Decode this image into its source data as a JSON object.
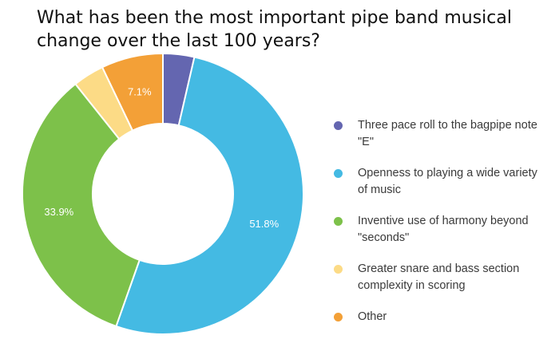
{
  "chart_data": {
    "type": "pie",
    "title": "What has been the most important pipe band musical change over the last 100 years?",
    "categories": [
      "Three pace roll to the bagpipe note \"E\"",
      "Openness to playing a wide variety of music",
      "Inventive use of harmony beyond \"seconds\"",
      "Greater snare and bass section complexity in scoring",
      "Other"
    ],
    "values": [
      3.6,
      51.8,
      33.9,
      3.6,
      7.1
    ],
    "data_labels": [
      "",
      "51.8%",
      "33.9%",
      "",
      "7.1%"
    ],
    "colors": [
      "#6466b0",
      "#44bae3",
      "#7dc14a",
      "#fcdb86",
      "#f3a037"
    ],
    "legend_position": "right",
    "donut": true
  }
}
